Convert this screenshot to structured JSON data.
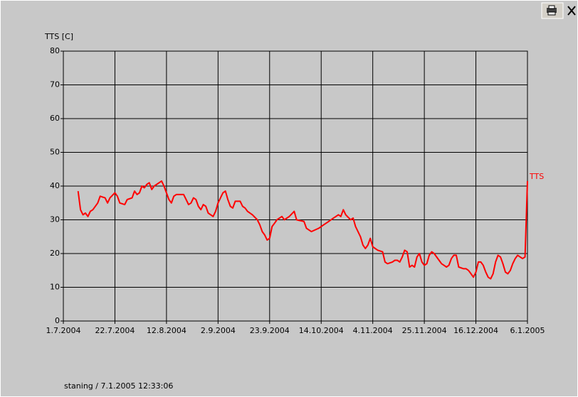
{
  "chart_data": {
    "type": "line",
    "y_label": "TTS [C]",
    "footer": "staning / 7.1.2005 12:33:06",
    "x": [
      "2004-07-07",
      "2004-07-08",
      "2004-07-09",
      "2004-07-10",
      "2004-07-11",
      "2004-07-12",
      "2004-07-13",
      "2004-07-15",
      "2004-07-16",
      "2004-07-18",
      "2004-07-19",
      "2004-07-20",
      "2004-07-22",
      "2004-07-23",
      "2004-07-24",
      "2004-07-26",
      "2004-07-27",
      "2004-07-29",
      "2004-07-30",
      "2004-07-31",
      "2004-08-01",
      "2004-08-02",
      "2004-08-03",
      "2004-08-04",
      "2004-08-05",
      "2004-08-06",
      "2004-08-07",
      "2004-08-09",
      "2004-08-10",
      "2004-08-11",
      "2004-08-13",
      "2004-08-14",
      "2004-08-15",
      "2004-08-16",
      "2004-08-19",
      "2004-08-20",
      "2004-08-21",
      "2004-08-22",
      "2004-08-23",
      "2004-08-24",
      "2004-08-25",
      "2004-08-26",
      "2004-08-27",
      "2004-08-28",
      "2004-08-29",
      "2004-08-31",
      "2004-09-01",
      "2004-09-02",
      "2004-09-04",
      "2004-09-05",
      "2004-09-06",
      "2004-09-07",
      "2004-09-08",
      "2004-09-09",
      "2004-09-11",
      "2004-09-12",
      "2004-09-13",
      "2004-09-14",
      "2004-09-16",
      "2004-09-18",
      "2004-09-19",
      "2004-09-20",
      "2004-09-21",
      "2004-09-22",
      "2004-09-23",
      "2004-09-24",
      "2004-09-25",
      "2004-09-26",
      "2004-09-28",
      "2004-09-29",
      "2004-10-01",
      "2004-10-03",
      "2004-10-04",
      "2004-10-07",
      "2004-10-08",
      "2004-10-10",
      "2004-10-13",
      "2004-10-15",
      "2004-10-17",
      "2004-10-19",
      "2004-10-21",
      "2004-10-22",
      "2004-10-23",
      "2004-10-24",
      "2004-10-26",
      "2004-10-27",
      "2004-10-28",
      "2004-10-30",
      "2004-10-31",
      "2004-11-01",
      "2004-11-02",
      "2004-11-03",
      "2004-11-04",
      "2004-11-06",
      "2004-11-08",
      "2004-11-09",
      "2004-11-10",
      "2004-11-12",
      "2004-11-13",
      "2004-11-14",
      "2004-11-15",
      "2004-11-16",
      "2004-11-17",
      "2004-11-18",
      "2004-11-19",
      "2004-11-20",
      "2004-11-21",
      "2004-11-22",
      "2004-11-23",
      "2004-11-24",
      "2004-11-25",
      "2004-11-26",
      "2004-11-27",
      "2004-11-28",
      "2004-11-29",
      "2004-12-01",
      "2004-12-02",
      "2004-12-03",
      "2004-12-04",
      "2004-12-05",
      "2004-12-06",
      "2004-12-07",
      "2004-12-08",
      "2004-12-09",
      "2004-12-11",
      "2004-12-12",
      "2004-12-13",
      "2004-12-14",
      "2004-12-15",
      "2004-12-16",
      "2004-12-17",
      "2004-12-18",
      "2004-12-19",
      "2004-12-20",
      "2004-12-21",
      "2004-12-22",
      "2004-12-23",
      "2004-12-24",
      "2004-12-25",
      "2004-12-26",
      "2004-12-27",
      "2004-12-28",
      "2004-12-29",
      "2004-12-30",
      "2004-12-31",
      "2005-01-01",
      "2005-01-02",
      "2005-01-03",
      "2005-01-04",
      "2005-01-05",
      "2005-01-06"
    ],
    "series": [
      {
        "name": "TTS",
        "color": "#ff0000",
        "values": [
          38.5,
          33,
          31.5,
          32,
          31,
          32.5,
          33,
          35,
          37,
          36.5,
          35,
          36.5,
          38,
          37,
          35,
          34.5,
          36,
          36.5,
          38.5,
          37.5,
          38,
          40,
          39.5,
          40.5,
          41,
          39,
          40,
          41,
          41.5,
          40,
          36,
          35,
          37,
          37.5,
          37.5,
          36,
          34.5,
          35,
          36.5,
          36,
          34,
          33,
          34.5,
          34,
          32,
          31,
          32.5,
          35,
          38,
          38.5,
          36,
          34,
          33.5,
          35.5,
          35.5,
          34,
          33.5,
          32.5,
          31.5,
          30,
          28.5,
          26.5,
          25.5,
          24,
          24.5,
          28,
          29,
          30,
          31,
          30,
          31,
          32.5,
          30,
          29.5,
          27.5,
          26.5,
          27.5,
          28.5,
          29.5,
          30.5,
          31.5,
          31,
          33,
          31.5,
          30,
          30.5,
          28,
          25,
          22.5,
          21.5,
          22.5,
          24.5,
          22,
          21,
          20.5,
          17.5,
          17,
          17.5,
          18,
          18,
          17.5,
          19,
          21,
          20.5,
          16,
          16.5,
          16,
          19,
          20,
          17.5,
          16.5,
          17,
          19.5,
          20.5,
          20,
          18,
          17,
          16.5,
          16,
          16.5,
          18.5,
          19.5,
          19.5,
          16,
          15.5,
          15.5,
          15,
          14,
          13,
          14.5,
          17.5,
          17.5,
          16.5,
          14.5,
          13,
          12.5,
          14,
          17.5,
          19.5,
          19,
          17,
          14.5,
          14,
          15,
          17,
          18.5,
          19.5,
          19,
          18.5,
          19,
          41.5
        ]
      }
    ],
    "xlim": [
      "2004-07-01",
      "2005-01-06"
    ],
    "xticks": [
      {
        "value": "2004-07-01",
        "label": "1.7.2004"
      },
      {
        "value": "2004-07-22",
        "label": "22.7.2004"
      },
      {
        "value": "2004-08-12",
        "label": "12.8.2004"
      },
      {
        "value": "2004-09-02",
        "label": "2.9.2004"
      },
      {
        "value": "2004-09-23",
        "label": "23.9.2004"
      },
      {
        "value": "2004-10-14",
        "label": "14.10.2004"
      },
      {
        "value": "2004-11-04",
        "label": "4.11.2004"
      },
      {
        "value": "2004-11-25",
        "label": "25.11.2004"
      },
      {
        "value": "2004-12-16",
        "label": "16.12.2004"
      },
      {
        "value": "2005-01-06",
        "label": "6.1.2005"
      }
    ],
    "ylim": [
      0,
      80
    ],
    "yticks": [
      0,
      10,
      20,
      30,
      40,
      50,
      60,
      70,
      80
    ],
    "grid": true
  }
}
